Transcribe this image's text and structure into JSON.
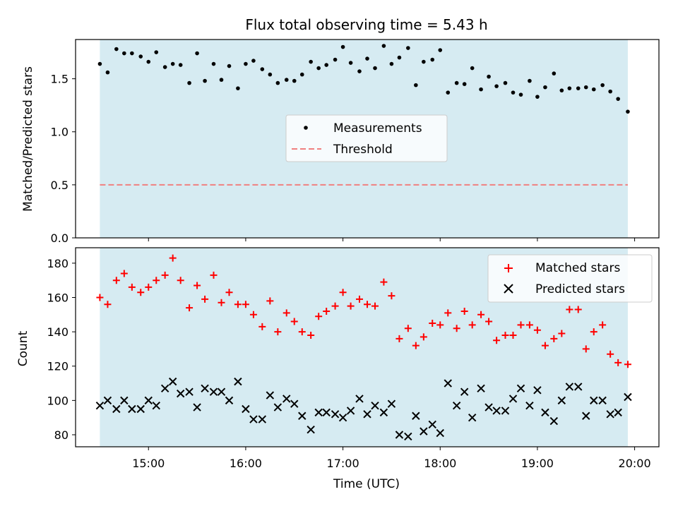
{
  "chart_data": [
    {
      "type": "scatter",
      "title": "Flux total observing time = 5.43 h",
      "xlabel": "",
      "ylabel": "Matched/Predicted stars",
      "ylim": [
        0,
        1.87
      ],
      "yticks": [
        0.0,
        0.5,
        1.0,
        1.5
      ],
      "ytick_labels": [
        "0.0",
        "0.5",
        "1.0",
        "1.5"
      ],
      "xlim_hours": [
        14.25,
        20.25
      ],
      "shaded_span_hours": [
        14.5,
        19.93
      ],
      "shade_color": "#add8e6",
      "threshold": 0.5,
      "legend": {
        "placement": "center",
        "entries": [
          "Measurements",
          "Threshold"
        ]
      },
      "series": [
        {
          "name": "Measurements",
          "color": "#000000",
          "marker": "dot",
          "x": [
            14.5,
            14.58,
            14.67,
            14.75,
            14.83,
            14.92,
            15.0,
            15.08,
            15.17,
            15.25,
            15.33,
            15.42,
            15.5,
            15.58,
            15.67,
            15.75,
            15.83,
            15.92,
            16.0,
            16.08,
            16.17,
            16.25,
            16.33,
            16.42,
            16.5,
            16.58,
            16.67,
            16.75,
            16.83,
            16.92,
            17.0,
            17.08,
            17.17,
            17.25,
            17.33,
            17.42,
            17.5,
            17.58,
            17.67,
            17.75,
            17.83,
            17.92,
            18.0,
            18.08,
            18.17,
            18.25,
            18.33,
            18.42,
            18.5,
            18.58,
            18.67,
            18.75,
            18.83,
            18.92,
            19.0,
            19.08,
            19.17,
            19.25,
            19.33,
            19.42,
            19.5,
            19.58,
            19.67,
            19.75,
            19.83,
            19.93
          ],
          "y": [
            1.64,
            1.56,
            1.78,
            1.74,
            1.74,
            1.71,
            1.66,
            1.75,
            1.61,
            1.64,
            1.63,
            1.46,
            1.74,
            1.48,
            1.64,
            1.49,
            1.62,
            1.41,
            1.64,
            1.67,
            1.59,
            1.54,
            1.46,
            1.49,
            1.48,
            1.54,
            1.66,
            1.6,
            1.63,
            1.68,
            1.8,
            1.65,
            1.57,
            1.69,
            1.6,
            1.81,
            1.64,
            1.7,
            1.79,
            1.44,
            1.66,
            1.68,
            1.77,
            1.37,
            1.46,
            1.45,
            1.6,
            1.4,
            1.52,
            1.43,
            1.46,
            1.37,
            1.35,
            1.48,
            1.33,
            1.42,
            1.55,
            1.39,
            1.41,
            1.41,
            1.42,
            1.4,
            1.44,
            1.38,
            1.31,
            1.19
          ]
        },
        {
          "name": "Threshold",
          "color": "#f08080",
          "style": "dashed",
          "x": [
            14.5,
            19.93
          ],
          "y": [
            0.5,
            0.5
          ]
        }
      ]
    },
    {
      "type": "scatter",
      "title": "",
      "xlabel": "Time (UTC)",
      "ylabel": "Count",
      "ylim": [
        73,
        189
      ],
      "yticks": [
        80,
        100,
        120,
        140,
        160,
        180
      ],
      "ytick_labels": [
        "80",
        "100",
        "120",
        "140",
        "160",
        "180"
      ],
      "xlim_hours": [
        14.25,
        20.25
      ],
      "xticks_hours": [
        15,
        16,
        17,
        18,
        19,
        20
      ],
      "xtick_labels": [
        "15:00",
        "16:00",
        "17:00",
        "18:00",
        "19:00",
        "20:00"
      ],
      "shaded_span_hours": [
        14.5,
        19.93
      ],
      "shade_color": "#add8e6",
      "legend": {
        "placement": "upper right",
        "entries": [
          "Matched stars",
          "Predicted stars"
        ]
      },
      "series": [
        {
          "name": "Matched stars",
          "color": "#ff0000",
          "marker": "plus",
          "x": [
            14.5,
            14.58,
            14.67,
            14.75,
            14.83,
            14.92,
            15.0,
            15.08,
            15.17,
            15.25,
            15.33,
            15.42,
            15.5,
            15.58,
            15.67,
            15.75,
            15.83,
            15.92,
            16.0,
            16.08,
            16.17,
            16.25,
            16.33,
            16.42,
            16.5,
            16.58,
            16.67,
            16.75,
            16.83,
            16.92,
            17.0,
            17.08,
            17.17,
            17.25,
            17.33,
            17.42,
            17.5,
            17.58,
            17.67,
            17.75,
            17.83,
            17.92,
            18.0,
            18.08,
            18.17,
            18.25,
            18.33,
            18.42,
            18.5,
            18.58,
            18.67,
            18.75,
            18.83,
            18.92,
            19.0,
            19.08,
            19.17,
            19.25,
            19.33,
            19.42,
            19.5,
            19.58,
            19.67,
            19.75,
            19.83,
            19.93
          ],
          "y": [
            160,
            156,
            170,
            174,
            166,
            163,
            166,
            170,
            173,
            183,
            170,
            154,
            167,
            159,
            173,
            157,
            163,
            156,
            156,
            150,
            143,
            158,
            140,
            151,
            146,
            140,
            138,
            149,
            152,
            155,
            163,
            155,
            159,
            156,
            155,
            169,
            161,
            136,
            142,
            132,
            137,
            145,
            144,
            151,
            142,
            152,
            144,
            150,
            146,
            135,
            138,
            138,
            144,
            144,
            141,
            132,
            136,
            139,
            153,
            153,
            130,
            140,
            144,
            127,
            122,
            121
          ]
        },
        {
          "name": "Predicted stars",
          "color": "#000000",
          "marker": "x",
          "x": [
            14.5,
            14.58,
            14.67,
            14.75,
            14.83,
            14.92,
            15.0,
            15.08,
            15.17,
            15.25,
            15.33,
            15.42,
            15.5,
            15.58,
            15.67,
            15.75,
            15.83,
            15.92,
            16.0,
            16.08,
            16.17,
            16.25,
            16.33,
            16.42,
            16.5,
            16.58,
            16.67,
            16.75,
            16.83,
            16.92,
            17.0,
            17.08,
            17.17,
            17.25,
            17.33,
            17.42,
            17.5,
            17.58,
            17.67,
            17.75,
            17.83,
            17.92,
            18.0,
            18.08,
            18.17,
            18.25,
            18.33,
            18.42,
            18.5,
            18.58,
            18.67,
            18.75,
            18.83,
            18.92,
            19.0,
            19.08,
            19.17,
            19.25,
            19.33,
            19.42,
            19.5,
            19.58,
            19.67,
            19.75,
            19.83,
            19.93
          ],
          "y": [
            97,
            100,
            95,
            100,
            95,
            95,
            100,
            97,
            107,
            111,
            104,
            105,
            96,
            107,
            105,
            105,
            100,
            111,
            95,
            89,
            89,
            103,
            96,
            101,
            98,
            91,
            83,
            93,
            93,
            92,
            90,
            94,
            101,
            92,
            97,
            93,
            98,
            80,
            79,
            91,
            82,
            86,
            81,
            110,
            97,
            105,
            90,
            107,
            96,
            94,
            94,
            101,
            107,
            97,
            106,
            93,
            88,
            100,
            108,
            108,
            91,
            100,
            100,
            92,
            93,
            102
          ]
        }
      ]
    }
  ]
}
